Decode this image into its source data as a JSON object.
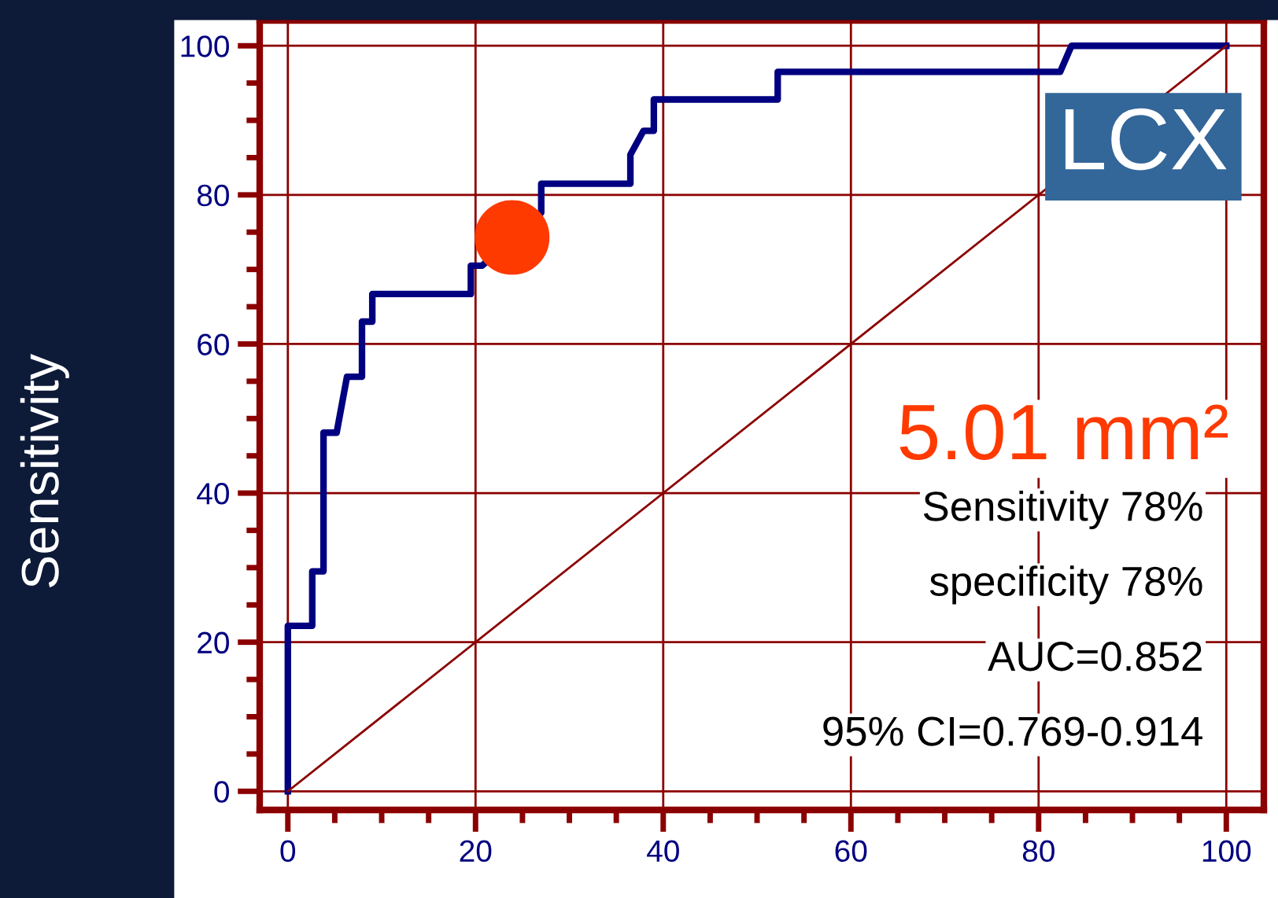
{
  "chart_data": {
    "type": "line",
    "ylabel": "Sensitivity",
    "series": [
      {
        "color": "#000080",
        "x": [
          0,
          0,
          2.6,
          2.6,
          3.8,
          3.8,
          5.2,
          6.3,
          7.9,
          7.9,
          9.0,
          9.0,
          19.5,
          19.5,
          20.7,
          27,
          27,
          36.5,
          36.5,
          37.9,
          39,
          39,
          52.2,
          52.2,
          82.3,
          83.5,
          100
        ],
        "values": [
          0,
          22.2,
          22.2,
          29.5,
          29.5,
          48.1,
          48.1,
          55.6,
          55.6,
          63,
          63,
          66.7,
          66.7,
          70.5,
          70.5,
          77.6,
          81.5,
          81.5,
          85.4,
          88.6,
          88.6,
          92.8,
          92.8,
          96.5,
          96.5,
          100,
          100
        ]
      },
      {
        "type": "line",
        "color": "#8b0000",
        "x": [
          0,
          100
        ],
        "values": [
          0,
          100
        ]
      },
      {
        "type": "scatter",
        "color": "#ff3a00",
        "x": [
          23.9
        ],
        "values": [
          74.3
        ]
      }
    ],
    "xlim": [
      -3,
      104
    ],
    "ylim": [
      -2.5,
      103.4
    ],
    "xticks": [
      0,
      20,
      40,
      60,
      80,
      100
    ],
    "yticks": [
      0,
      20,
      40,
      60,
      80,
      100
    ],
    "grid": true,
    "annotations": [
      "LCX",
      "5.01 mm²",
      "Sensitivity 78%",
      "specificity 78%",
      "AUC=0.852",
      "95% CI=0.769-0.914"
    ]
  }
}
